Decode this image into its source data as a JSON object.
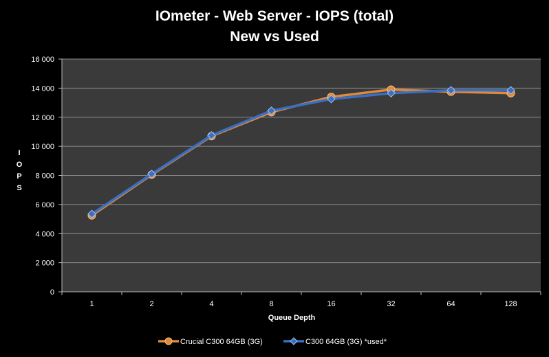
{
  "chart_data": {
    "type": "line",
    "title": "IOmeter - Web Server - IOPS (total)",
    "subtitle": "New vs Used",
    "xlabel": "Queue Depth",
    "ylabel": "IOPS",
    "categories": [
      "1",
      "2",
      "4",
      "8",
      "16",
      "32",
      "64",
      "128"
    ],
    "ylim": [
      0,
      16000
    ],
    "yticks": [
      0,
      2000,
      4000,
      6000,
      8000,
      10000,
      12000,
      14000,
      16000
    ],
    "ytick_labels": [
      "0",
      "2 000",
      "4 000",
      "6 000",
      "8 000",
      "10 000",
      "12 000",
      "14 000",
      "16 000"
    ],
    "grid": true,
    "legend_position": "bottom",
    "series": [
      {
        "name": "Crucial C300 64GB (3G)",
        "color": "#e08a3c",
        "marker": "circle",
        "values": [
          5250,
          8050,
          10700,
          12350,
          13400,
          13900,
          13750,
          13650
        ]
      },
      {
        "name": "C300 64GB (3G) *used*",
        "color": "#3a6fc4",
        "marker": "diamond",
        "values": [
          5350,
          8100,
          10750,
          12450,
          13250,
          13650,
          13850,
          13850
        ]
      }
    ]
  },
  "colors": {
    "background": "#000000",
    "plot_area": "#3a3a3a",
    "gridline": "#8c8c8c"
  }
}
